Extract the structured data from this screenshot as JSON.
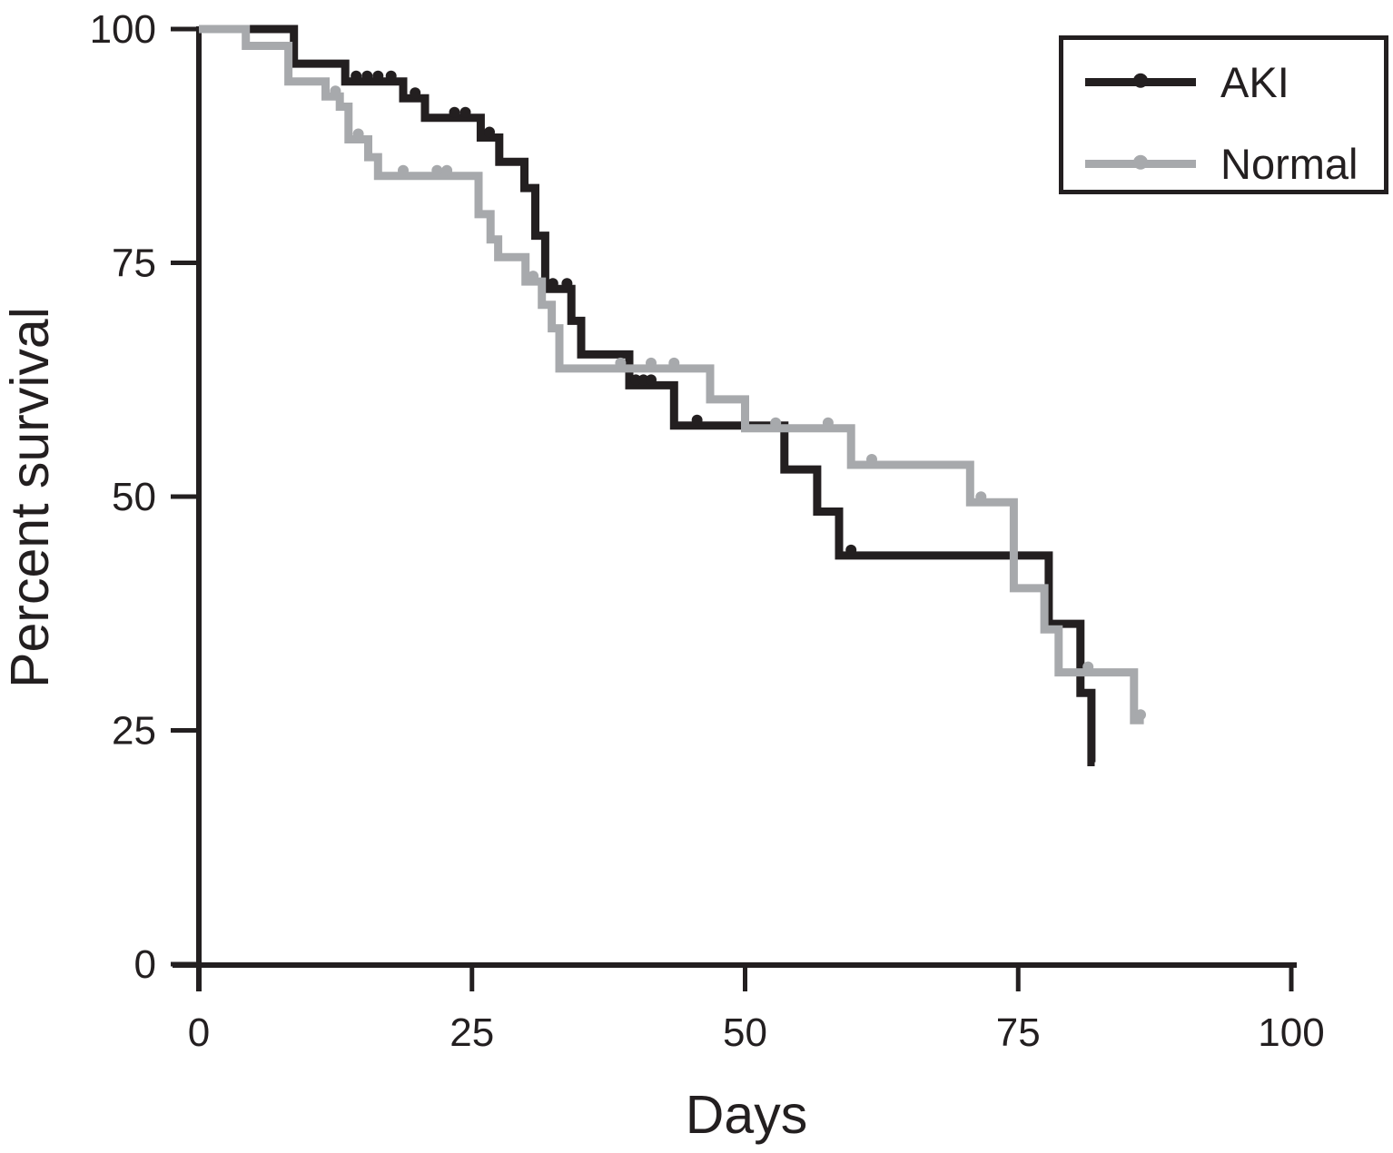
{
  "chart_data": {
    "type": "line",
    "subtype": "kaplan-meier-step-survival",
    "title": "",
    "xlabel": "Days",
    "ylabel": "Percent survival",
    "xlim": [
      0,
      100
    ],
    "ylim": [
      0,
      100
    ],
    "xticks": [
      0,
      25,
      50,
      75,
      100
    ],
    "yticks": [
      0,
      25,
      50,
      75,
      100
    ],
    "grid": false,
    "axis_color": "#231f20",
    "legend": {
      "position": "top-right",
      "border_color": "#231f20",
      "entries": [
        {
          "label": "AKI",
          "color": "#231f20",
          "marker": "dot"
        },
        {
          "label": "Normal",
          "color": "#a7a9ac",
          "marker": "dot"
        }
      ]
    },
    "series": [
      {
        "name": "AKI",
        "color": "#231f20",
        "line_width": 9,
        "steps": [
          [
            0,
            100
          ],
          [
            8.7,
            96.3
          ],
          [
            13.4,
            94.4
          ],
          [
            18.7,
            92.6
          ],
          [
            20.7,
            90.5
          ],
          [
            25.8,
            88.4
          ],
          [
            27.5,
            85.8
          ],
          [
            29.8,
            83.0
          ],
          [
            30.8,
            77.9
          ],
          [
            31.7,
            72.2
          ],
          [
            34.1,
            68.8
          ],
          [
            35.0,
            65.2
          ],
          [
            39.4,
            61.9
          ],
          [
            43.5,
            57.6
          ],
          [
            53.6,
            52.9
          ],
          [
            56.6,
            48.4
          ],
          [
            58.6,
            43.7
          ],
          [
            77.8,
            36.4
          ],
          [
            80.7,
            29.0
          ],
          [
            81.7,
            21.6
          ]
        ],
        "end_day": 82.0,
        "censor_marks": [
          [
            14.4,
            94.4
          ],
          [
            15.4,
            94.4
          ],
          [
            16.4,
            94.4
          ],
          [
            17.6,
            94.4
          ],
          [
            19.8,
            92.6
          ],
          [
            23.4,
            90.5
          ],
          [
            24.4,
            90.5
          ],
          [
            26.6,
            88.4
          ],
          [
            32.4,
            72.2
          ],
          [
            33.7,
            72.2
          ],
          [
            40.0,
            61.9
          ],
          [
            40.7,
            61.9
          ],
          [
            41.4,
            61.9
          ],
          [
            45.6,
            57.6
          ],
          [
            59.7,
            43.7
          ]
        ]
      },
      {
        "name": "Normal",
        "color": "#a7a9ac",
        "line_width": 9,
        "steps": [
          [
            0,
            100
          ],
          [
            4.3,
            98.2
          ],
          [
            8.2,
            94.4
          ],
          [
            11.6,
            92.8
          ],
          [
            12.9,
            91.7
          ],
          [
            13.7,
            88.2
          ],
          [
            15.5,
            86.3
          ],
          [
            16.4,
            84.3
          ],
          [
            25.6,
            80.2
          ],
          [
            26.7,
            77.5
          ],
          [
            27.4,
            75.6
          ],
          [
            29.9,
            73.0
          ],
          [
            31.4,
            70.5
          ],
          [
            32.3,
            68.0
          ],
          [
            33.0,
            63.7
          ],
          [
            46.8,
            60.4
          ],
          [
            50.0,
            57.3
          ],
          [
            59.7,
            53.4
          ],
          [
            70.6,
            49.4
          ],
          [
            74.6,
            40.2
          ],
          [
            77.4,
            35.8
          ],
          [
            78.7,
            31.2
          ],
          [
            85.6,
            26.1
          ]
        ],
        "end_day": 86.5,
        "censor_marks": [
          [
            12.5,
            92.8
          ],
          [
            14.6,
            88.2
          ],
          [
            18.7,
            84.3
          ],
          [
            21.8,
            84.3
          ],
          [
            22.7,
            84.3
          ],
          [
            30.6,
            73.0
          ],
          [
            38.6,
            63.7
          ],
          [
            41.4,
            63.7
          ],
          [
            43.5,
            63.7
          ],
          [
            52.8,
            57.3
          ],
          [
            57.6,
            57.3
          ],
          [
            61.6,
            53.4
          ],
          [
            71.6,
            49.4
          ],
          [
            81.4,
            31.2
          ],
          [
            86.2,
            26.1
          ]
        ]
      }
    ]
  }
}
